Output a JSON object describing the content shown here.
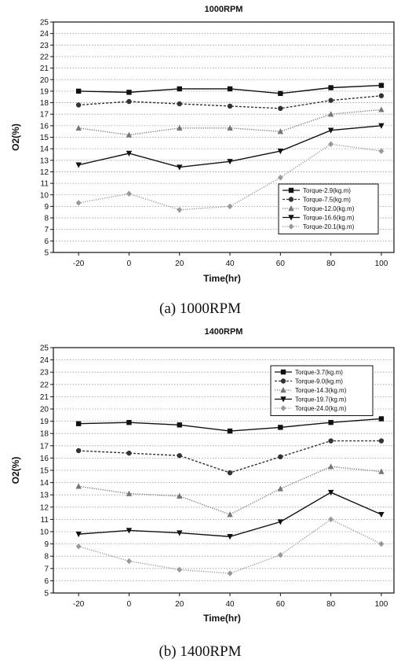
{
  "chart_data": [
    {
      "type": "line",
      "title": "1000RPM",
      "caption": "(a)  1000RPM",
      "xlabel": "Time(hr)",
      "ylabel": "O2(%)",
      "xticks": [
        -20,
        0,
        20,
        40,
        60,
        80,
        100
      ],
      "xlim": [
        -30,
        105
      ],
      "ylim": [
        5,
        25
      ],
      "yticks": [
        5,
        6,
        7,
        8,
        9,
        10,
        11,
        12,
        13,
        14,
        15,
        16,
        17,
        18,
        19,
        20,
        21,
        22,
        23,
        24,
        25
      ],
      "grid": true,
      "legend_position": "bottom-right",
      "x": [
        -20,
        0,
        20,
        40,
        60,
        80,
        100
      ],
      "series": [
        {
          "name": "Torque-2.9(kg.m)",
          "marker": "square",
          "line": "solid",
          "color": "#111111",
          "values": [
            19.0,
            18.9,
            19.2,
            19.2,
            18.8,
            19.3,
            19.5
          ]
        },
        {
          "name": "Torque-7.5(kg.m)",
          "marker": "circle",
          "line": "dashed",
          "color": "#333333",
          "values": [
            17.8,
            18.1,
            17.9,
            17.7,
            17.5,
            18.2,
            18.6
          ]
        },
        {
          "name": "Torque-12.0(kg.m)",
          "marker": "triangle-up",
          "line": "dotted",
          "color": "#777777",
          "values": [
            15.8,
            15.2,
            15.8,
            15.8,
            15.5,
            17.0,
            17.4
          ]
        },
        {
          "name": "Torque-16.6(kg.m)",
          "marker": "triangle-down",
          "line": "solid",
          "color": "#111111",
          "values": [
            12.6,
            13.6,
            12.4,
            12.9,
            13.8,
            15.6,
            16.0
          ]
        },
        {
          "name": "Torque-20.1(kg.m)",
          "marker": "diamond",
          "line": "dotted",
          "color": "#999999",
          "values": [
            9.3,
            10.1,
            8.7,
            9.0,
            11.5,
            14.4,
            13.8
          ]
        }
      ]
    },
    {
      "type": "line",
      "title": "1400RPM",
      "caption": "(b)  1400RPM",
      "xlabel": "Time(hr)",
      "ylabel": "O2(%)",
      "xticks": [
        -20,
        0,
        20,
        40,
        60,
        80,
        100
      ],
      "xlim": [
        -30,
        105
      ],
      "ylim": [
        5,
        25
      ],
      "yticks": [
        5,
        6,
        7,
        8,
        9,
        10,
        11,
        12,
        13,
        14,
        15,
        16,
        17,
        18,
        19,
        20,
        21,
        22,
        23,
        24,
        25
      ],
      "grid": true,
      "legend_position": "top-right",
      "x": [
        -20,
        0,
        20,
        40,
        60,
        80,
        100
      ],
      "series": [
        {
          "name": "Torque-3.7(kg.m)",
          "marker": "square",
          "line": "solid",
          "color": "#111111",
          "values": [
            18.8,
            18.9,
            18.7,
            18.2,
            18.5,
            18.9,
            19.2
          ]
        },
        {
          "name": "Torque-9.0(kg.m)",
          "marker": "circle",
          "line": "dashed",
          "color": "#333333",
          "values": [
            16.6,
            16.4,
            16.2,
            14.8,
            16.1,
            17.4,
            17.4
          ]
        },
        {
          "name": "Torque-14.3(kg.m)",
          "marker": "triangle-up",
          "line": "dotted",
          "color": "#777777",
          "values": [
            13.7,
            13.1,
            12.9,
            11.4,
            13.5,
            15.3,
            14.9
          ]
        },
        {
          "name": "Torque-19.7(kg.m)",
          "marker": "triangle-down",
          "line": "solid",
          "color": "#111111",
          "values": [
            9.8,
            10.1,
            9.9,
            9.6,
            10.8,
            13.2,
            11.4
          ]
        },
        {
          "name": "Torque-24.0(kg.m)",
          "marker": "diamond",
          "line": "dotted",
          "color": "#999999",
          "values": [
            8.8,
            7.6,
            6.9,
            6.6,
            8.1,
            11.0,
            9.0
          ]
        }
      ]
    }
  ]
}
